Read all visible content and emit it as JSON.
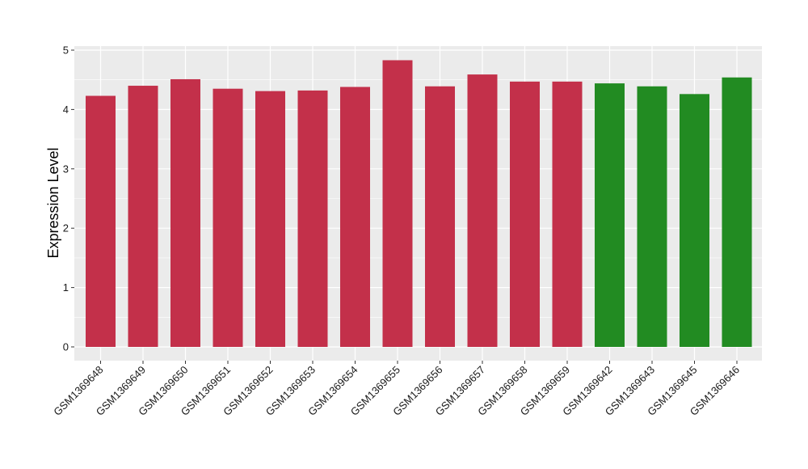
{
  "chart_data": {
    "type": "bar",
    "title": "",
    "xlabel": "",
    "ylabel": "Expression Level",
    "ylim": [
      0,
      5.05
    ],
    "yticks": [
      0,
      1,
      2,
      3,
      4,
      5
    ],
    "grid": true,
    "panel_background": "#ebebeb",
    "grid_color": "#ffffff",
    "categories": [
      "GSM1369648",
      "GSM1369649",
      "GSM1369650",
      "GSM1369651",
      "GSM1369652",
      "GSM1369653",
      "GSM1369654",
      "GSM1369655",
      "GSM1369656",
      "GSM1369657",
      "GSM1369658",
      "GSM1369659",
      "GSM1369642",
      "GSM1369643",
      "GSM1369645",
      "GSM1369646"
    ],
    "values": [
      4.23,
      4.4,
      4.51,
      4.35,
      4.31,
      4.32,
      4.38,
      4.83,
      4.39,
      4.59,
      4.47,
      4.47,
      4.44,
      4.39,
      4.26,
      4.54
    ],
    "bar_colors": [
      "#c3304a",
      "#c3304a",
      "#c3304a",
      "#c3304a",
      "#c3304a",
      "#c3304a",
      "#c3304a",
      "#c3304a",
      "#c3304a",
      "#c3304a",
      "#c3304a",
      "#c3304a",
      "#228b22",
      "#228b22",
      "#228b22",
      "#228b22"
    ]
  }
}
